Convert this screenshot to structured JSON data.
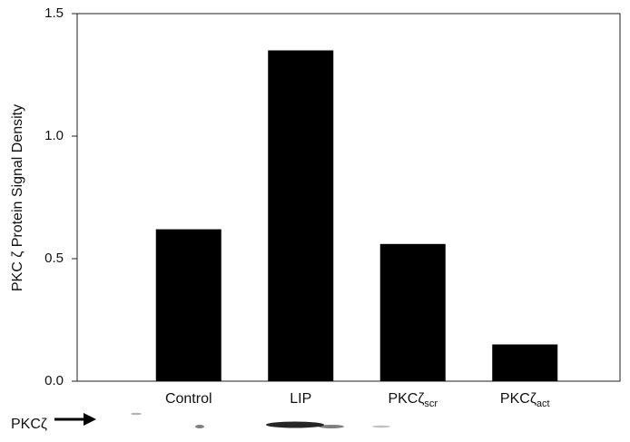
{
  "chart_data": {
    "type": "bar",
    "y_label": "PKC ζ Protein Signal Density",
    "categories": [
      "Control",
      "LIP",
      "PKCζ",
      "PKCζ"
    ],
    "category_subscripts": [
      null,
      null,
      "scr",
      "act"
    ],
    "values": [
      0.62,
      1.35,
      0.56,
      0.15
    ],
    "color": "#000000",
    "ylim": [
      0,
      1.5
    ],
    "yticks": [
      {
        "value": 0,
        "label": "0.0"
      },
      0.5,
      {
        "value": 1,
        "label": "1.0"
      },
      1.5
    ],
    "blot_label": "PKCζ"
  }
}
